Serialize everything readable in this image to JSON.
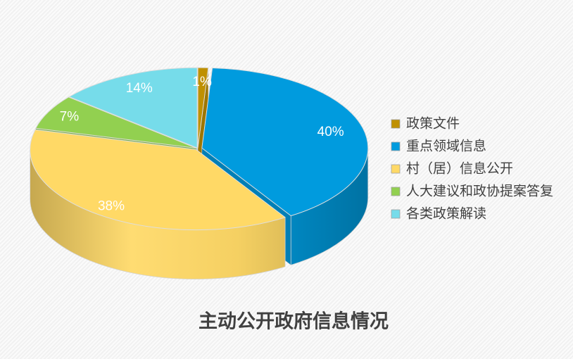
{
  "chart_data": {
    "type": "pie",
    "three_d": true,
    "title": "主动公开政府信息情况",
    "categories": [
      "政策文件",
      "重点领域信息",
      "村（居）信息公开",
      "人大建议和政协提案答复",
      "各类政策解读"
    ],
    "values": [
      1,
      40,
      38,
      7,
      14
    ],
    "data_labels": [
      "1%",
      "40%",
      "38%",
      "7%",
      "14%"
    ],
    "colors": [
      "#BF9000",
      "#009BDE",
      "#FFD966",
      "#92D050",
      "#76DCEA"
    ],
    "legend_position": "right"
  }
}
